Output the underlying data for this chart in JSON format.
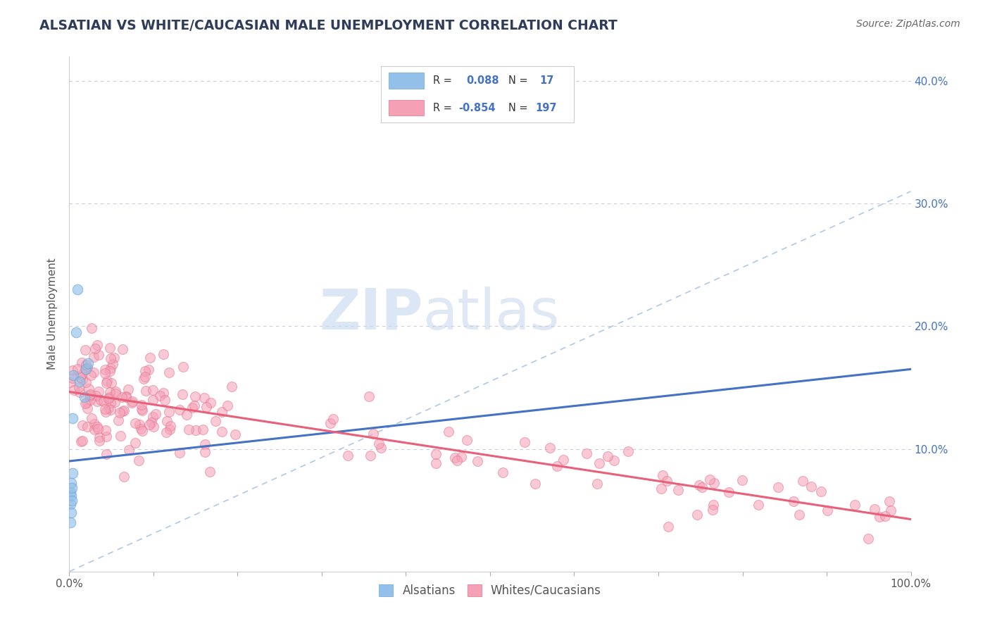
{
  "title": "ALSATIAN VS WHITE/CAUCASIAN MALE UNEMPLOYMENT CORRELATION CHART",
  "source": "Source: ZipAtlas.com",
  "ylabel": "Male Unemployment",
  "xlim": [
    0,
    1
  ],
  "ylim": [
    0,
    0.42
  ],
  "blue_color": "#92C0E8",
  "pink_color": "#F5A0B5",
  "trend_blue": "#4472C4",
  "trend_pink": "#E8607A",
  "dashed_color": "#A8C4E0",
  "background_color": "#FFFFFF",
  "grid_color": "#CCCCDD",
  "watermark_zip": "ZIP",
  "watermark_atlas": "atlas",
  "title_color": "#2F3D5A",
  "source_color": "#666666",
  "axis_color": "#555555",
  "right_axis_color": "#4472C4",
  "legend_border_color": "#CCCCCC",
  "legend_text_color": "#333333",
  "legend_value_color": "#4472C4"
}
